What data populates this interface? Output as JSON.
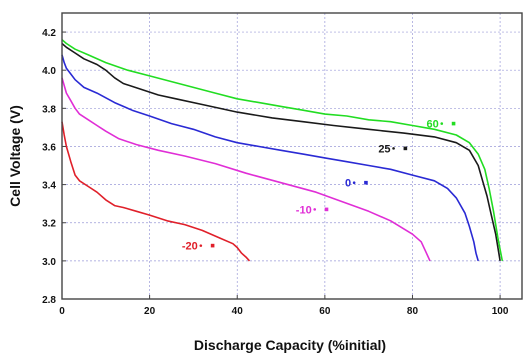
{
  "chart_data": {
    "type": "line",
    "title": "",
    "xlabel": "Discharge Capacity (%initial)",
    "ylabel": "Cell Voltage (V)",
    "xlim": [
      0,
      105
    ],
    "ylim": [
      2.8,
      4.3
    ],
    "x_ticks": [
      0,
      20,
      40,
      60,
      80,
      100
    ],
    "y_ticks": [
      2.8,
      3.0,
      3.2,
      3.4,
      3.6,
      3.8,
      4.0,
      4.2
    ],
    "grid": true,
    "series": [
      {
        "name": "-20",
        "color": "#e0202a",
        "label_text": "-20",
        "label_at": [
          31,
          3.08
        ],
        "points": [
          [
            0,
            3.73
          ],
          [
            0.5,
            3.66
          ],
          [
            1,
            3.6
          ],
          [
            2,
            3.52
          ],
          [
            3,
            3.45
          ],
          [
            4,
            3.42
          ],
          [
            6,
            3.39
          ],
          [
            8,
            3.36
          ],
          [
            10,
            3.32
          ],
          [
            12,
            3.29
          ],
          [
            14,
            3.28
          ],
          [
            17,
            3.26
          ],
          [
            20,
            3.24
          ],
          [
            24,
            3.21
          ],
          [
            28,
            3.19
          ],
          [
            32,
            3.16
          ],
          [
            36,
            3.12
          ],
          [
            39,
            3.09
          ],
          [
            40,
            3.07
          ],
          [
            41,
            3.04
          ],
          [
            42,
            3.02
          ],
          [
            42.8,
            3.0
          ]
        ]
      },
      {
        "name": "-10",
        "color": "#e02ed6",
        "label_text": "-10",
        "label_at": [
          57,
          3.27
        ],
        "points": [
          [
            0,
            3.96
          ],
          [
            0.5,
            3.92
          ],
          [
            1,
            3.88
          ],
          [
            2,
            3.84
          ],
          [
            3,
            3.8
          ],
          [
            4,
            3.77
          ],
          [
            6,
            3.74
          ],
          [
            8,
            3.71
          ],
          [
            10,
            3.68
          ],
          [
            13,
            3.64
          ],
          [
            17,
            3.61
          ],
          [
            22,
            3.58
          ],
          [
            28,
            3.55
          ],
          [
            35,
            3.51
          ],
          [
            42,
            3.46
          ],
          [
            50,
            3.41
          ],
          [
            58,
            3.36
          ],
          [
            64,
            3.31
          ],
          [
            70,
            3.26
          ],
          [
            75,
            3.21
          ],
          [
            80,
            3.14
          ],
          [
            82,
            3.1
          ],
          [
            83,
            3.05
          ],
          [
            84,
            3.0
          ]
        ]
      },
      {
        "name": "0",
        "color": "#2a2ad4",
        "label_text": "0",
        "label_at": [
          66,
          3.41
        ],
        "points": [
          [
            0,
            4.08
          ],
          [
            0.5,
            4.04
          ],
          [
            1,
            4.01
          ],
          [
            2,
            3.98
          ],
          [
            3,
            3.95
          ],
          [
            5,
            3.91
          ],
          [
            8,
            3.88
          ],
          [
            12,
            3.83
          ],
          [
            16,
            3.79
          ],
          [
            20,
            3.76
          ],
          [
            25,
            3.72
          ],
          [
            30,
            3.69
          ],
          [
            35,
            3.65
          ],
          [
            40,
            3.62
          ],
          [
            45,
            3.6
          ],
          [
            50,
            3.58
          ],
          [
            55,
            3.56
          ],
          [
            60,
            3.54
          ],
          [
            65,
            3.52
          ],
          [
            70,
            3.5
          ],
          [
            75,
            3.48
          ],
          [
            80,
            3.45
          ],
          [
            85,
            3.42
          ],
          [
            88,
            3.38
          ],
          [
            90,
            3.33
          ],
          [
            92,
            3.25
          ],
          [
            93,
            3.18
          ],
          [
            94,
            3.1
          ],
          [
            94.5,
            3.04
          ],
          [
            95,
            3.0
          ]
        ]
      },
      {
        "name": "25",
        "color": "#1a1a1a",
        "label_text": "25",
        "label_at": [
          75,
          3.59
        ],
        "points": [
          [
            0,
            4.14
          ],
          [
            1,
            4.12
          ],
          [
            3,
            4.09
          ],
          [
            5,
            4.06
          ],
          [
            8,
            4.03
          ],
          [
            10,
            4.0
          ],
          [
            12,
            3.96
          ],
          [
            14,
            3.93
          ],
          [
            18,
            3.9
          ],
          [
            22,
            3.87
          ],
          [
            26,
            3.85
          ],
          [
            32,
            3.82
          ],
          [
            40,
            3.78
          ],
          [
            48,
            3.75
          ],
          [
            55,
            3.73
          ],
          [
            62,
            3.71
          ],
          [
            70,
            3.69
          ],
          [
            78,
            3.67
          ],
          [
            85,
            3.65
          ],
          [
            90,
            3.62
          ],
          [
            93,
            3.58
          ],
          [
            95,
            3.5
          ],
          [
            96,
            3.42
          ],
          [
            97,
            3.34
          ],
          [
            98,
            3.24
          ],
          [
            99,
            3.14
          ],
          [
            99.5,
            3.07
          ],
          [
            100,
            3.0
          ]
        ]
      },
      {
        "name": "60",
        "color": "#22dd22",
        "label_text": "60",
        "label_at": [
          86,
          3.72
        ],
        "points": [
          [
            0,
            4.16
          ],
          [
            1,
            4.14
          ],
          [
            3,
            4.11
          ],
          [
            6,
            4.08
          ],
          [
            10,
            4.04
          ],
          [
            15,
            4.0
          ],
          [
            20,
            3.97
          ],
          [
            25,
            3.94
          ],
          [
            30,
            3.91
          ],
          [
            35,
            3.88
          ],
          [
            40,
            3.85
          ],
          [
            45,
            3.83
          ],
          [
            50,
            3.81
          ],
          [
            55,
            3.79
          ],
          [
            60,
            3.77
          ],
          [
            65,
            3.76
          ],
          [
            70,
            3.74
          ],
          [
            75,
            3.73
          ],
          [
            80,
            3.71
          ],
          [
            85,
            3.69
          ],
          [
            90,
            3.66
          ],
          [
            93,
            3.62
          ],
          [
            95,
            3.56
          ],
          [
            96.5,
            3.48
          ],
          [
            97.5,
            3.38
          ],
          [
            98.5,
            3.26
          ],
          [
            99.5,
            3.12
          ],
          [
            100.5,
            3.0
          ]
        ]
      }
    ]
  }
}
